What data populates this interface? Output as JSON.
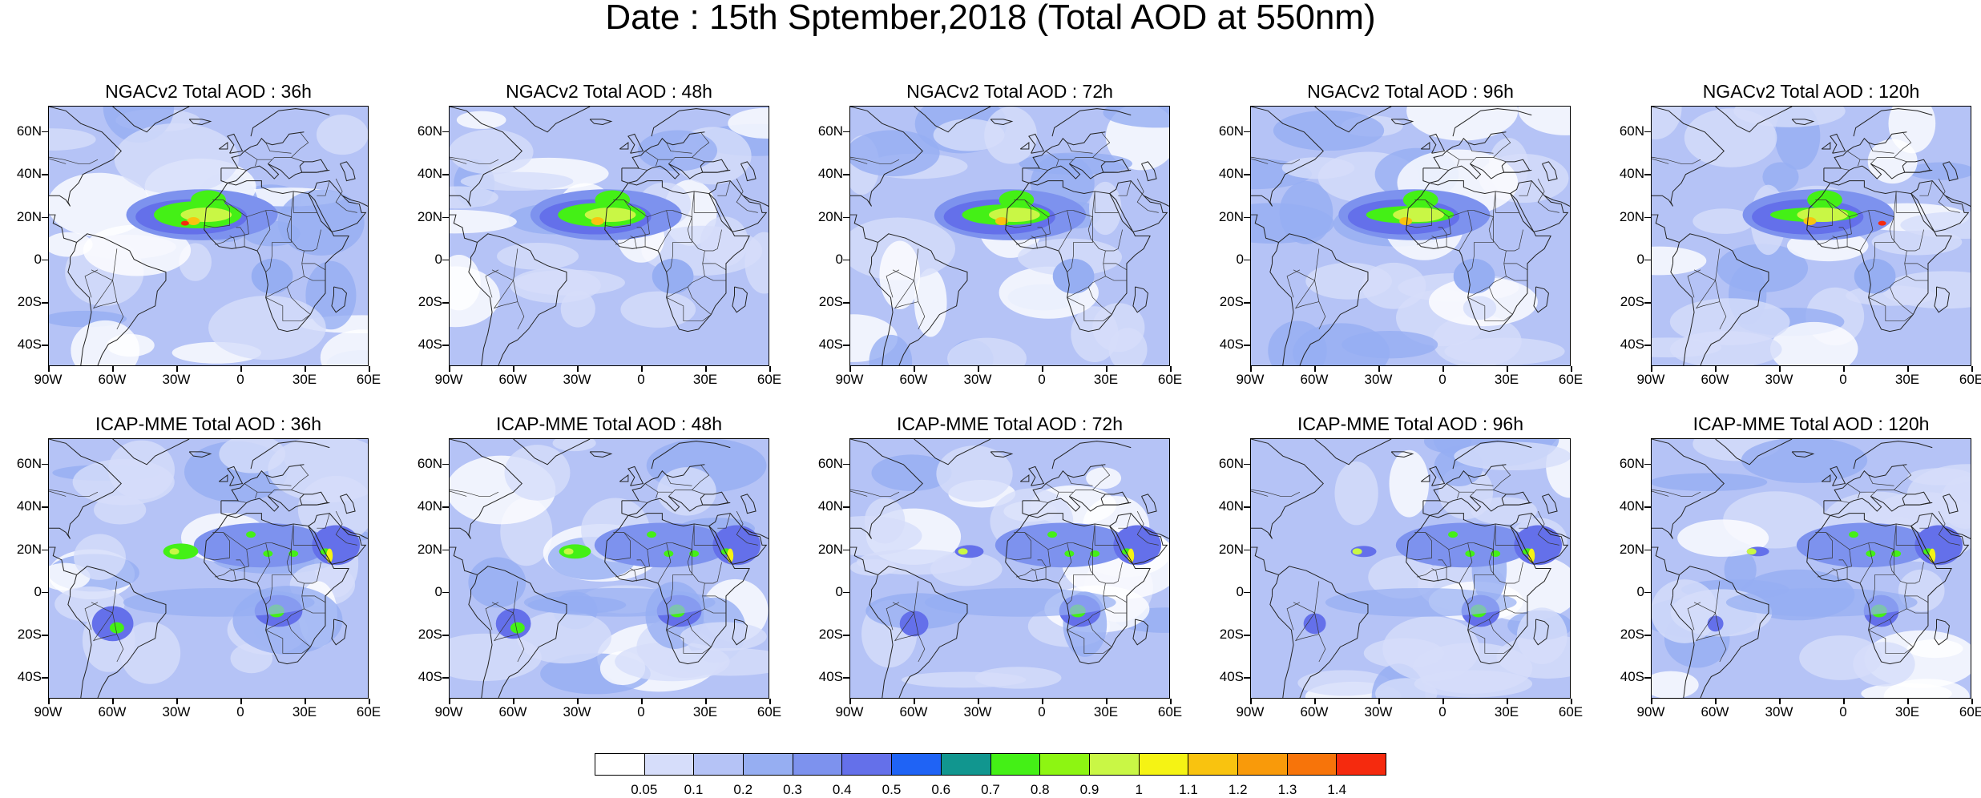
{
  "title": "Date : 15th Sptember,2018 (Total AOD at 550nm)",
  "panels": [
    {
      "title": "NGACv2 Total AOD : 36h",
      "model": "NGACv2",
      "lead": "36h"
    },
    {
      "title": "NGACv2 Total AOD : 48h",
      "model": "NGACv2",
      "lead": "48h"
    },
    {
      "title": "NGACv2 Total AOD : 72h",
      "model": "NGACv2",
      "lead": "72h"
    },
    {
      "title": "NGACv2 Total AOD : 96h",
      "model": "NGACv2",
      "lead": "96h"
    },
    {
      "title": "NGACv2 Total AOD : 120h",
      "model": "NGACv2",
      "lead": "120h"
    },
    {
      "title": "ICAP-MME Total AOD : 36h",
      "model": "ICAP-MME",
      "lead": "36h"
    },
    {
      "title": "ICAP-MME Total AOD : 48h",
      "model": "ICAP-MME",
      "lead": "48h"
    },
    {
      "title": "ICAP-MME Total AOD : 72h",
      "model": "ICAP-MME",
      "lead": "72h"
    },
    {
      "title": "ICAP-MME Total AOD : 96h",
      "model": "ICAP-MME",
      "lead": "96h"
    },
    {
      "title": "ICAP-MME Total AOD : 120h",
      "model": "ICAP-MME",
      "lead": "120h"
    }
  ],
  "lat_labels": [
    "60N",
    "40N",
    "20N",
    "0",
    "20S",
    "40S"
  ],
  "lon_labels": [
    "90W",
    "60W",
    "30W",
    "0",
    "30E",
    "60E"
  ],
  "extent": {
    "lon_min": -90,
    "lon_max": 60,
    "lat_min": -50,
    "lat_max": 72
  },
  "colorbar": {
    "levels": [
      "0.05",
      "0.1",
      "0.2",
      "0.3",
      "0.4",
      "0.5",
      "0.6",
      "0.7",
      "0.8",
      "0.9",
      "1",
      "1.1",
      "1.2",
      "1.3",
      "1.4"
    ],
    "colors": [
      "#ffffff",
      "#d6ddfa",
      "#b5c3f6",
      "#96aef2",
      "#7d92ee",
      "#6470ea",
      "#1f63f5",
      "#11968f",
      "#44f016",
      "#8df512",
      "#c9f745",
      "#f5f314",
      "#f9c30f",
      "#f99a0a",
      "#f7740a",
      "#f52a0e"
    ]
  }
}
